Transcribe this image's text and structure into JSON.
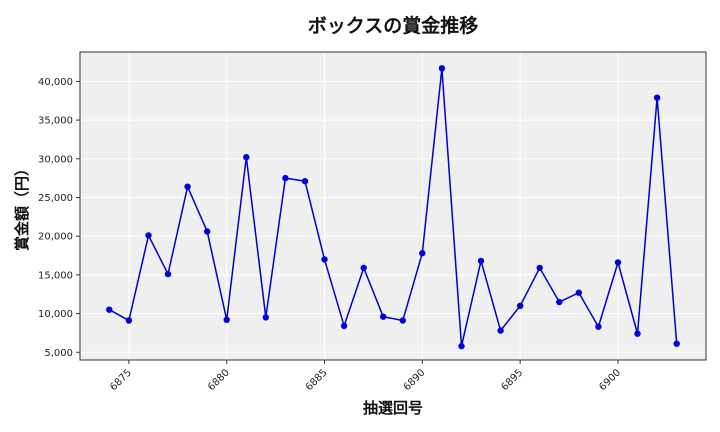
{
  "chart_data": {
    "type": "line",
    "title": "ボックスの賞金推移",
    "xlabel": "抽選回号",
    "ylabel": "賞金額（円）",
    "x": [
      6874,
      6875,
      6876,
      6877,
      6878,
      6879,
      6880,
      6881,
      6882,
      6883,
      6884,
      6885,
      6886,
      6887,
      6888,
      6889,
      6890,
      6891,
      6892,
      6893,
      6894,
      6895,
      6896,
      6897,
      6898,
      6899,
      6900,
      6901,
      6902,
      6903
    ],
    "series": [
      {
        "values": [
          10500,
          9100,
          20100,
          15100,
          26400,
          20600,
          9200,
          30200,
          9500,
          27500,
          27100,
          17000,
          8400,
          15900,
          9600,
          9100,
          17800,
          41700,
          5800,
          16800,
          7800,
          11000,
          15900,
          11500,
          12700,
          8300,
          16600,
          7400,
          37900,
          6100
        ]
      }
    ],
    "xticks": [
      "6875",
      "6880",
      "6885",
      "6890",
      "6895",
      "6900"
    ],
    "yticks": [
      "5,000",
      "10,000",
      "15,000",
      "20,000",
      "25,000",
      "30,000",
      "35,000",
      "40,000"
    ],
    "xlim": [
      6872.5,
      6904.5
    ],
    "ylim": [
      4000,
      43800
    ],
    "grid": true,
    "colors": {
      "line": "#0000cc",
      "marker": "#0000dd",
      "plot_bg": "#efefef",
      "grid": "#ffffff"
    }
  }
}
